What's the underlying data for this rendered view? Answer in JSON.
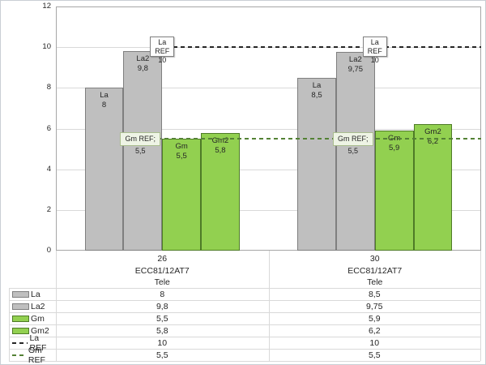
{
  "chart_data": {
    "type": "bar",
    "title": "",
    "categories": [
      {
        "lines": [
          "26",
          "ECC81/12AT7",
          "Tele"
        ]
      },
      {
        "lines": [
          "30",
          "ECC81/12AT7",
          "Tele"
        ]
      }
    ],
    "series": [
      {
        "name": "La",
        "kind": "bar",
        "swatch": "bar-gray",
        "values": [
          8,
          8.5
        ],
        "display": [
          "8",
          "8,5"
        ]
      },
      {
        "name": "La2",
        "kind": "bar",
        "swatch": "bar-gray",
        "values": [
          9.8,
          9.75
        ],
        "display": [
          "9,8",
          "9,75"
        ]
      },
      {
        "name": "Gm",
        "kind": "bar",
        "swatch": "bar-green",
        "values": [
          5.5,
          5.9
        ],
        "display": [
          "5,5",
          "5,9"
        ]
      },
      {
        "name": "Gm2",
        "kind": "bar",
        "swatch": "bar-green",
        "values": [
          5.8,
          6.2
        ],
        "display": [
          "5,8",
          "6,2"
        ]
      },
      {
        "name": "La REF",
        "kind": "ref-line",
        "swatch": "dash-black",
        "values": [
          10,
          10
        ],
        "display": [
          "10",
          "10"
        ]
      },
      {
        "name": "Gm REF",
        "kind": "ref-line",
        "swatch": "dash-green",
        "values": [
          5.5,
          5.5
        ],
        "display": [
          "5,5",
          "5,5"
        ]
      }
    ],
    "ref_labels": {
      "la_ref_box_lines": [
        "La REF",
        "10"
      ],
      "gm_ref_box_text": "Gm REF; 5,5"
    },
    "ylim": [
      0,
      12
    ],
    "yticks": [
      "0",
      "2",
      "4",
      "6",
      "8",
      "10",
      "12"
    ],
    "grid": true,
    "legend_position": "table-left"
  },
  "colors": {
    "bar_gray": "#bfbfbf",
    "bar_gray_border": "#7f7f7f",
    "bar_green": "#92d050",
    "bar_green_border": "#4e7b27",
    "ref_black": "#262626",
    "ref_green": "#548235",
    "gridline": "#d9d9d9",
    "axis": "#a6a6a6",
    "text": "#262626"
  }
}
